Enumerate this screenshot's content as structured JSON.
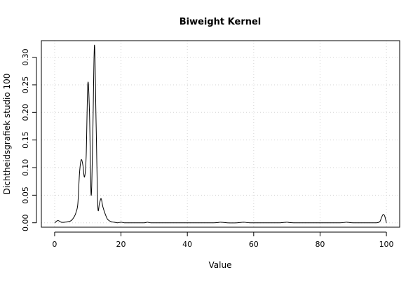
{
  "chart_data": {
    "type": "line",
    "title": "Biweight Kernel",
    "xlabel": "Value",
    "ylabel": "Dichtheidsgrafiek studio 100",
    "xlim": [
      -4,
      104
    ],
    "ylim": [
      -0.008,
      0.33
    ],
    "x_ticks": [
      0,
      20,
      40,
      60,
      80,
      100
    ],
    "x_tick_labels": [
      "0",
      "20",
      "40",
      "60",
      "80",
      "100"
    ],
    "y_ticks": [
      0,
      0.05,
      0.1,
      0.15,
      0.2,
      0.25,
      0.3
    ],
    "y_tick_labels": [
      "0.00",
      "0.05",
      "0.10",
      "0.15",
      "0.20",
      "0.25",
      "0.30"
    ],
    "grid": true,
    "legend": "none",
    "colors": {
      "line": "#000000",
      "grid": "#d3d3d3",
      "frame": "#000000",
      "background": "#ffffff"
    },
    "series": [
      {
        "x": [
          0,
          1,
          2,
          3,
          4,
          5,
          6,
          6.5,
          7,
          7.5,
          8,
          8.5,
          9,
          9.5,
          10,
          10.5,
          11,
          11.5,
          12,
          12.5,
          13,
          13.5,
          14,
          14.5,
          15,
          15.5,
          16,
          17,
          18,
          19,
          20,
          21,
          22,
          25,
          27,
          28,
          29,
          32,
          40,
          48,
          50,
          52,
          55,
          57,
          59,
          65,
          68,
          70,
          72,
          80,
          86,
          88,
          90,
          95,
          97,
          98,
          98.5,
          99,
          99.5,
          100
        ],
        "y": [
          0,
          0.004,
          0.001,
          0.001,
          0.002,
          0.004,
          0.012,
          0.02,
          0.035,
          0.09,
          0.114,
          0.105,
          0.083,
          0.12,
          0.252,
          0.2,
          0.05,
          0.16,
          0.322,
          0.18,
          0.032,
          0.035,
          0.044,
          0.03,
          0.02,
          0.012,
          0.006,
          0.002,
          0.001,
          0,
          0.001,
          0,
          0,
          0,
          0,
          0.001,
          0,
          0,
          0,
          0,
          0.001,
          0,
          0,
          0.001,
          0,
          0,
          0,
          0.001,
          0,
          0,
          0,
          0.001,
          0,
          0,
          0,
          0.002,
          0.009,
          0.015,
          0.012,
          0
        ]
      }
    ]
  }
}
